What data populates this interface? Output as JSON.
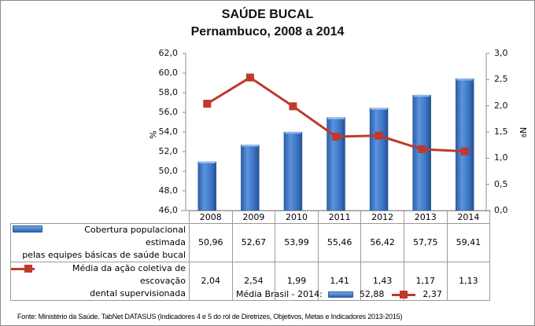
{
  "title": "SAÚDE BUCAL",
  "subtitle": "Pernambuco, 2008 a 2014",
  "left_axis": {
    "label": "%",
    "ticks": [
      "62,0",
      "60,0",
      "58,0",
      "56,0",
      "54,0",
      "52,0",
      "50,0",
      "48,0",
      "46,0"
    ]
  },
  "right_axis": {
    "label": "Nº",
    "ticks": [
      "3,0",
      "2,5",
      "2,0",
      "1,5",
      "1,0",
      "0,5",
      "0,0"
    ]
  },
  "table": {
    "years": [
      "2008",
      "2009",
      "2010",
      "2011",
      "2012",
      "2013",
      "2014"
    ],
    "row1_label_line1": "Cobertura populacional estimada",
    "row1_label_line2": "pelas equipes básicas de saúde bucal",
    "row1_values": [
      "50,96",
      "52,67",
      "53,99",
      "55,46",
      "56,42",
      "57,75",
      "59,41"
    ],
    "row2_label_line1": "Média da ação coletiva de escovação",
    "row2_label_line2": "dental supervisionada",
    "row2_values": [
      "2,04",
      "2,54",
      "1,99",
      "1,41",
      "1,43",
      "1,17",
      "1,13"
    ]
  },
  "brasil": {
    "label": "Média Brasil - 2014:",
    "bar_value": "52,88",
    "line_value": "2,37"
  },
  "source": "Fonte: Ministério da Saúde. TabNet DATASUS (Indicadores 4 e 5 do rol de Diretrizes, Objetivos, Metas e Indicadores 2013-2015)",
  "colors": {
    "bar": "#3a72c4",
    "line": "#c0392b"
  },
  "chart_data": {
    "type": "bar+line",
    "title": "SAÚDE BUCAL",
    "subtitle": "Pernambuco, 2008 a 2014",
    "categories": [
      "2008",
      "2009",
      "2010",
      "2011",
      "2012",
      "2013",
      "2014"
    ],
    "series": [
      {
        "name": "Cobertura populacional estimada pelas equipes básicas de saúde bucal",
        "type": "bar",
        "axis": "left",
        "values": [
          50.96,
          52.67,
          53.99,
          55.46,
          56.42,
          57.75,
          59.41
        ]
      },
      {
        "name": "Média da ação coletiva de escovação dental supervisionada",
        "type": "line",
        "axis": "right",
        "values": [
          2.04,
          2.54,
          1.99,
          1.41,
          1.43,
          1.17,
          1.13
        ]
      }
    ],
    "ylabel": "%",
    "ylim": [
      46,
      62
    ],
    "y2label": "Nº",
    "y2lim": [
      0,
      3
    ],
    "reference": {
      "label": "Média Brasil - 2014",
      "bar": 52.88,
      "line": 2.37
    },
    "grid": false,
    "legend_position": "data-table"
  }
}
